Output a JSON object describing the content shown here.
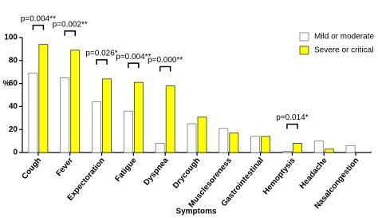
{
  "chart_data": {
    "type": "bar",
    "x_label": "Symptoms",
    "y_label": "%",
    "categories": [
      "Cough",
      "Fever",
      "Expectoration",
      "Fatigue",
      "Dyspnea",
      "Drycough",
      "Musclesoreness",
      "Gastrointestinal",
      "Hemoptysis",
      "Headache",
      "Nasalcongestion"
    ],
    "series": [
      {
        "name": "Mild or moderate",
        "color": "#ffffff",
        "values": [
          69,
          65,
          44,
          36,
          8,
          25,
          21,
          14,
          1,
          10,
          6
        ]
      },
      {
        "name": "Severe or critical",
        "color": "#ffff00",
        "values": [
          94,
          89,
          64,
          61,
          58,
          31,
          17,
          14,
          8,
          3,
          0
        ]
      }
    ],
    "ylim": [
      0,
      100
    ],
    "yticks": [
      0,
      20,
      40,
      60,
      80,
      100
    ],
    "legend": "top-right",
    "annotations": [
      {
        "category": "Cough",
        "text": "p=0.004**"
      },
      {
        "category": "Fever",
        "text": "p=0.002**"
      },
      {
        "category": "Expectoration",
        "text": "p=0.026*"
      },
      {
        "category": "Fatigue",
        "text": "p=0.004**"
      },
      {
        "category": "Dyspnea",
        "text": "p=0.000**"
      },
      {
        "category": "Hemoptysis",
        "text": "p=0.014*"
      }
    ]
  }
}
